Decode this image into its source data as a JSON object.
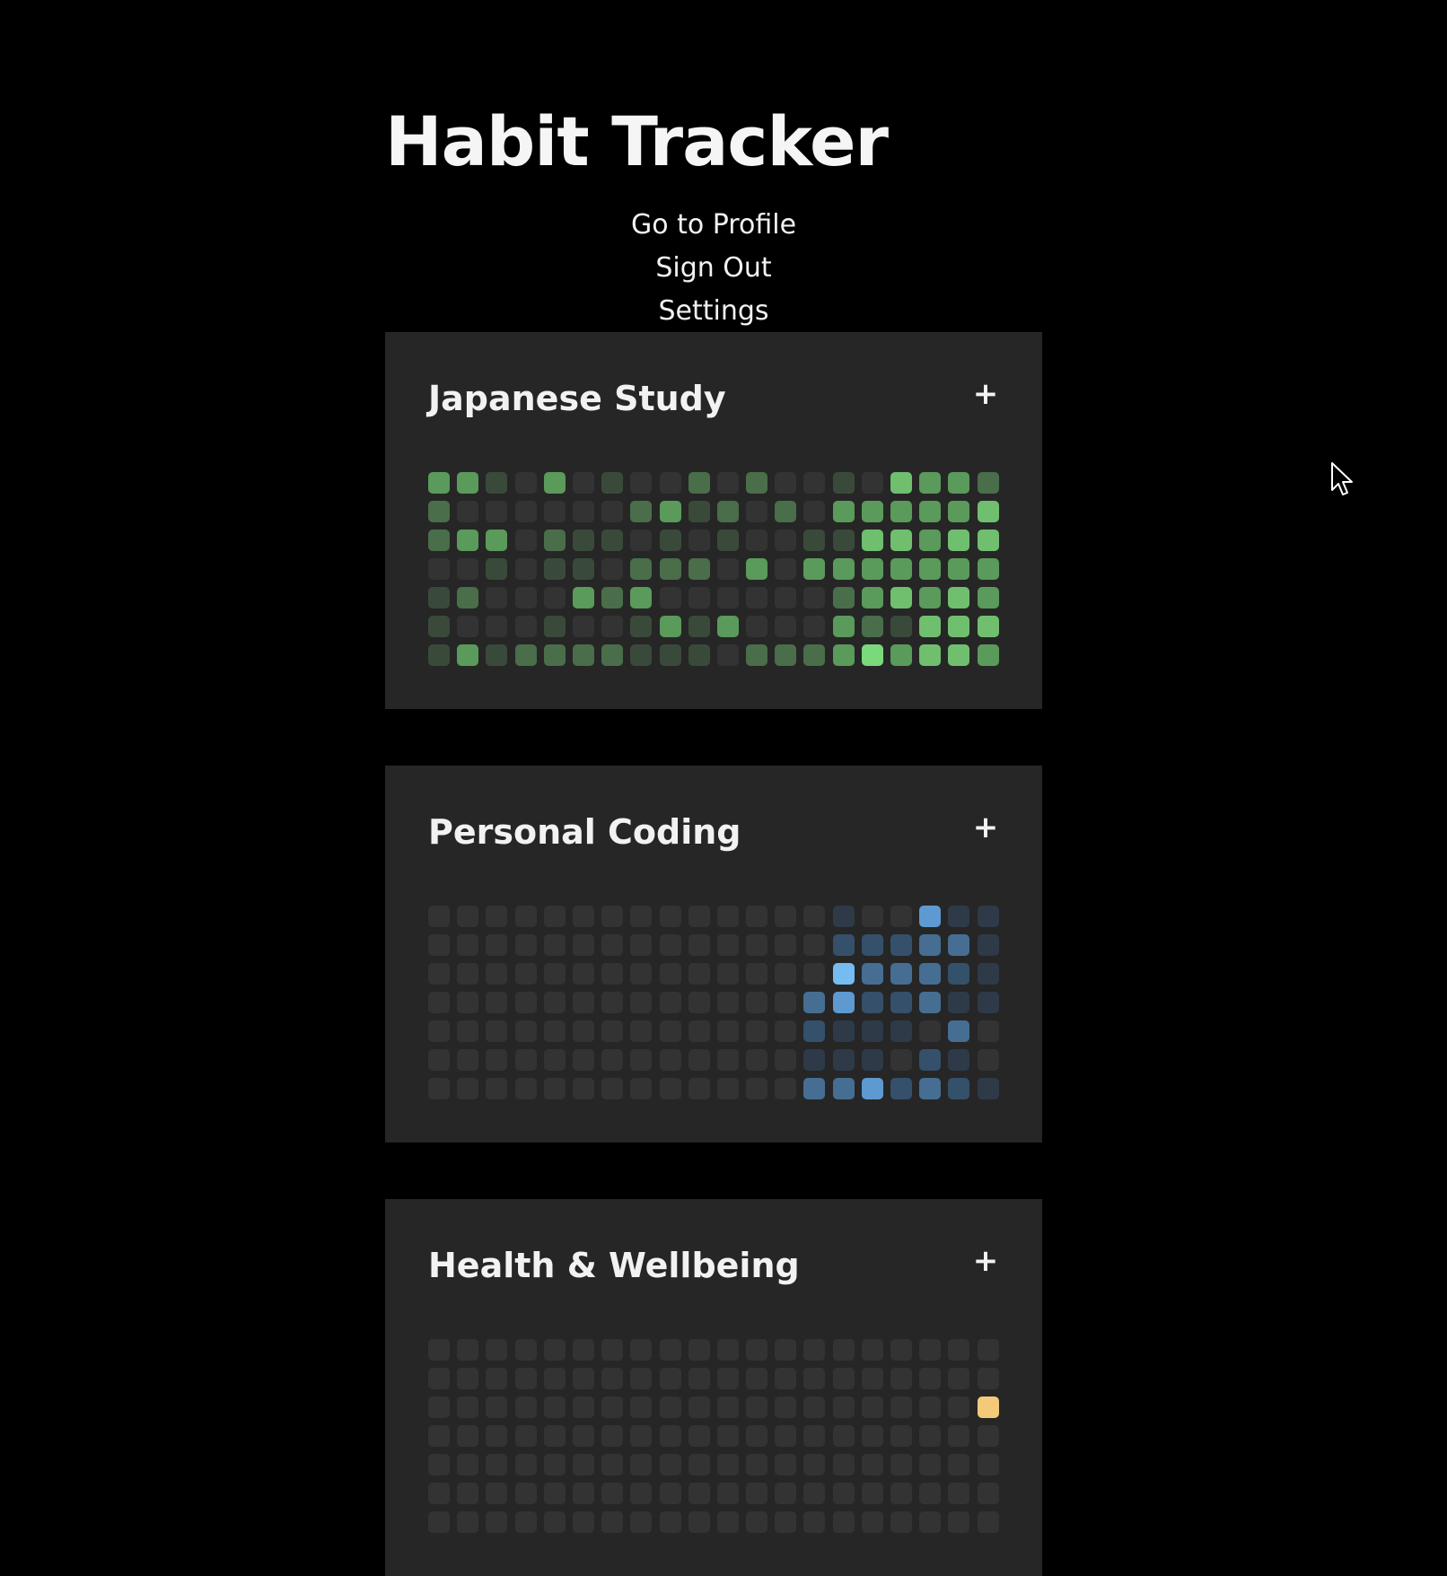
{
  "header": {
    "title": "Habit Tracker"
  },
  "nav": {
    "profile": "Go to Profile",
    "sign_out": "Sign Out",
    "settings": "Settings"
  },
  "habits": [
    {
      "name": "Japanese Study",
      "add_label": "+",
      "palette": [
        "#333333",
        "#3a4a3a",
        "#4a6d4a",
        "#5a9a5a",
        "#6fbf6f",
        "#7ad97a"
      ],
      "levels": [
        [
          3,
          3,
          1,
          0,
          3,
          0,
          1,
          0,
          0,
          2,
          0,
          2,
          0,
          0,
          1,
          0,
          4,
          3,
          3,
          2
        ],
        [
          2,
          0,
          0,
          0,
          0,
          0,
          0,
          2,
          3,
          1,
          2,
          0,
          2,
          0,
          3,
          3,
          3,
          3,
          3,
          4
        ],
        [
          2,
          3,
          3,
          0,
          2,
          1,
          1,
          0,
          1,
          0,
          1,
          0,
          0,
          1,
          1,
          4,
          4,
          3,
          4,
          4
        ],
        [
          0,
          0,
          1,
          0,
          1,
          1,
          0,
          2,
          2,
          2,
          0,
          3,
          0,
          3,
          3,
          3,
          3,
          3,
          3,
          3
        ],
        [
          1,
          2,
          0,
          0,
          0,
          3,
          2,
          3,
          0,
          0,
          0,
          0,
          0,
          0,
          2,
          3,
          4,
          3,
          4,
          3
        ],
        [
          1,
          0,
          0,
          0,
          1,
          0,
          0,
          1,
          3,
          1,
          3,
          0,
          0,
          0,
          3,
          2,
          1,
          4,
          4,
          4
        ],
        [
          1,
          3,
          1,
          2,
          2,
          2,
          2,
          1,
          1,
          1,
          0,
          2,
          2,
          2,
          3,
          5,
          3,
          4,
          4,
          3
        ]
      ]
    },
    {
      "name": "Personal Coding",
      "add_label": "+",
      "palette": [
        "#333333",
        "#2e3a48",
        "#35506a",
        "#466e92",
        "#5e9ad1",
        "#75bdf0"
      ],
      "levels": [
        [
          0,
          0,
          0,
          0,
          0,
          0,
          0,
          0,
          0,
          0,
          0,
          0,
          0,
          0,
          1,
          0,
          0,
          4,
          1,
          1
        ],
        [
          0,
          0,
          0,
          0,
          0,
          0,
          0,
          0,
          0,
          0,
          0,
          0,
          0,
          0,
          2,
          2,
          2,
          3,
          3,
          1
        ],
        [
          0,
          0,
          0,
          0,
          0,
          0,
          0,
          0,
          0,
          0,
          0,
          0,
          0,
          0,
          5,
          3,
          3,
          3,
          2,
          1
        ],
        [
          0,
          0,
          0,
          0,
          0,
          0,
          0,
          0,
          0,
          0,
          0,
          0,
          0,
          3,
          4,
          2,
          2,
          3,
          1,
          1
        ],
        [
          0,
          0,
          0,
          0,
          0,
          0,
          0,
          0,
          0,
          0,
          0,
          0,
          0,
          2,
          1,
          1,
          1,
          0,
          3,
          0
        ],
        [
          0,
          0,
          0,
          0,
          0,
          0,
          0,
          0,
          0,
          0,
          0,
          0,
          0,
          1,
          1,
          1,
          0,
          2,
          1,
          0
        ],
        [
          0,
          0,
          0,
          0,
          0,
          0,
          0,
          0,
          0,
          0,
          0,
          0,
          0,
          3,
          3,
          4,
          2,
          3,
          2,
          1
        ]
      ]
    },
    {
      "name": "Health & Wellbeing",
      "add_label": "+",
      "palette": [
        "#333333",
        "#4a4030",
        "#7a6236",
        "#b08a4a",
        "#e0b060",
        "#f5c97a"
      ],
      "levels": [
        [
          0,
          0,
          0,
          0,
          0,
          0,
          0,
          0,
          0,
          0,
          0,
          0,
          0,
          0,
          0,
          0,
          0,
          0,
          0,
          0
        ],
        [
          0,
          0,
          0,
          0,
          0,
          0,
          0,
          0,
          0,
          0,
          0,
          0,
          0,
          0,
          0,
          0,
          0,
          0,
          0,
          0
        ],
        [
          0,
          0,
          0,
          0,
          0,
          0,
          0,
          0,
          0,
          0,
          0,
          0,
          0,
          0,
          0,
          0,
          0,
          0,
          0,
          5
        ],
        [
          0,
          0,
          0,
          0,
          0,
          0,
          0,
          0,
          0,
          0,
          0,
          0,
          0,
          0,
          0,
          0,
          0,
          0,
          0,
          0
        ],
        [
          0,
          0,
          0,
          0,
          0,
          0,
          0,
          0,
          0,
          0,
          0,
          0,
          0,
          0,
          0,
          0,
          0,
          0,
          0,
          0
        ],
        [
          0,
          0,
          0,
          0,
          0,
          0,
          0,
          0,
          0,
          0,
          0,
          0,
          0,
          0,
          0,
          0,
          0,
          0,
          0,
          0
        ],
        [
          0,
          0,
          0,
          0,
          0,
          0,
          0,
          0,
          0,
          0,
          0,
          0,
          0,
          0,
          0,
          0,
          0,
          0,
          0,
          0
        ]
      ]
    }
  ]
}
